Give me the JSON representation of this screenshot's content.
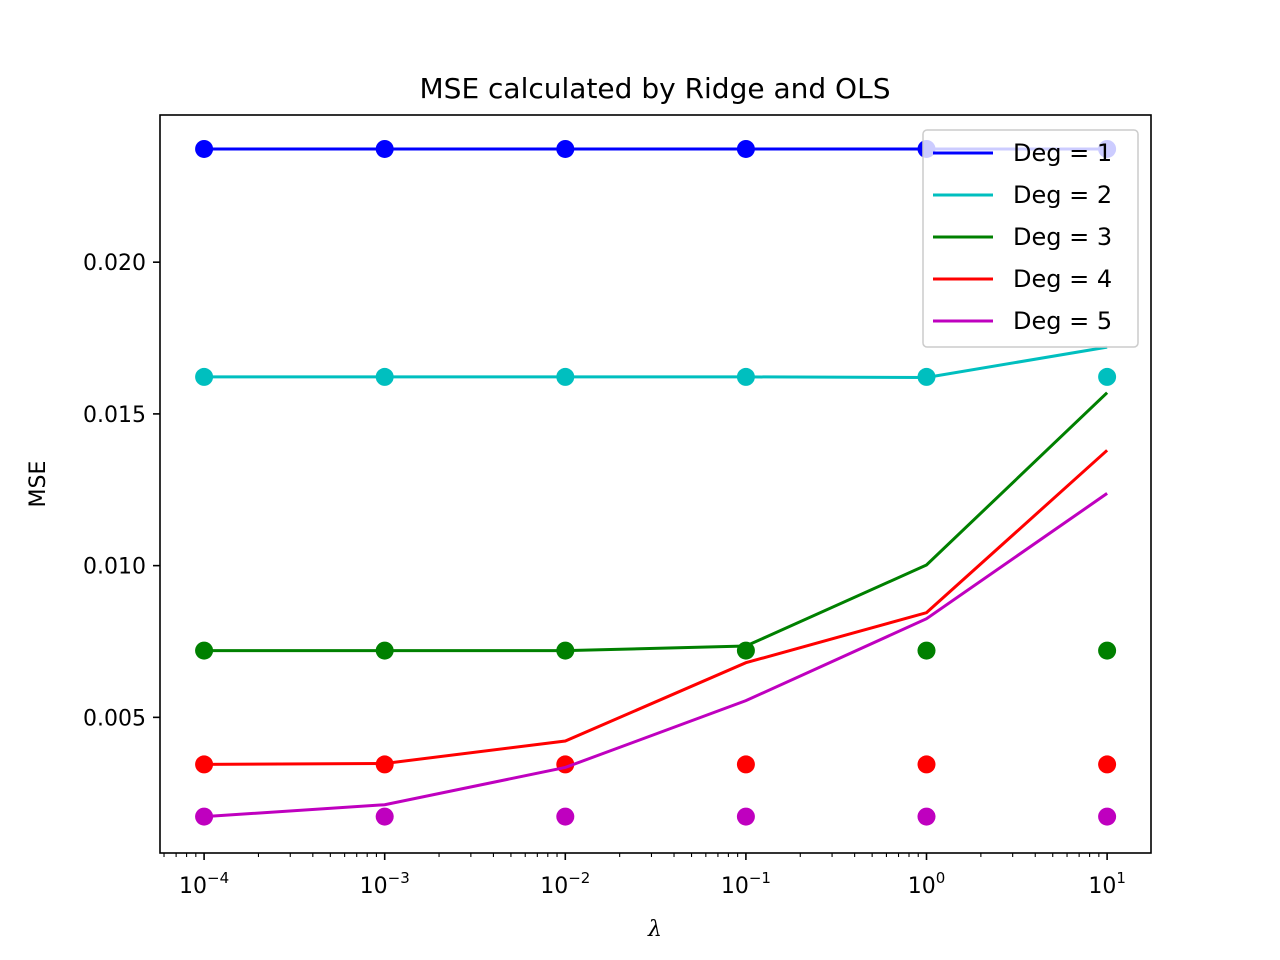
{
  "chart_data": {
    "type": "line",
    "title": "MSE calculated by Ridge and OLS",
    "xlabel": "λ",
    "ylabel": "MSE",
    "xscale": "log",
    "x": [
      0.0001,
      0.001,
      0.01,
      0.1,
      1,
      10
    ],
    "xtick_labels": [
      {
        "base": "10",
        "exp": "−4"
      },
      {
        "base": "10",
        "exp": "−3"
      },
      {
        "base": "10",
        "exp": "−2"
      },
      {
        "base": "10",
        "exp": "−1"
      },
      {
        "base": "10",
        "exp": "0"
      },
      {
        "base": "10",
        "exp": "1"
      }
    ],
    "xlim": [
      5.7e-05,
      17.5
    ],
    "ylim": [
      0.00053,
      0.02485
    ],
    "yticks": [
      0.005,
      0.01,
      0.015,
      0.02
    ],
    "ytick_labels": [
      "0.005",
      "0.010",
      "0.015",
      "0.020"
    ],
    "grid": false,
    "legend_position": "top-right",
    "series": [
      {
        "name": "Deg = 1",
        "color": "#0000ff",
        "ridge": [
          0.02373,
          0.02373,
          0.02373,
          0.02373,
          0.02373,
          0.02373
        ],
        "ols": [
          0.02373,
          0.02373,
          0.02373,
          0.02373,
          0.02373,
          0.02373
        ]
      },
      {
        "name": "Deg = 2",
        "color": "#00bfbf",
        "ridge": [
          0.01622,
          0.01622,
          0.01622,
          0.01622,
          0.0162,
          0.0172
        ],
        "ols": [
          0.01622,
          0.01622,
          0.01622,
          0.01622,
          0.01622,
          0.01622
        ]
      },
      {
        "name": "Deg = 3",
        "color": "#008000",
        "ridge": [
          0.0072,
          0.0072,
          0.0072,
          0.00735,
          0.01002,
          0.0157
        ],
        "ols": [
          0.0072,
          0.0072,
          0.0072,
          0.0072,
          0.0072,
          0.0072
        ]
      },
      {
        "name": "Deg = 4",
        "color": "#ff0000",
        "ridge": [
          0.00345,
          0.00348,
          0.00422,
          0.0068,
          0.00845,
          0.0138
        ],
        "ols": [
          0.00345,
          0.00345,
          0.00345,
          0.00345,
          0.00345,
          0.00345
        ]
      },
      {
        "name": "Deg = 5",
        "color": "#bf00bf",
        "ridge": [
          0.00173,
          0.00212,
          0.00335,
          0.00555,
          0.00825,
          0.01238
        ],
        "ols": [
          0.00173,
          0.00173,
          0.00173,
          0.00173,
          0.00173,
          0.00173
        ]
      }
    ]
  }
}
